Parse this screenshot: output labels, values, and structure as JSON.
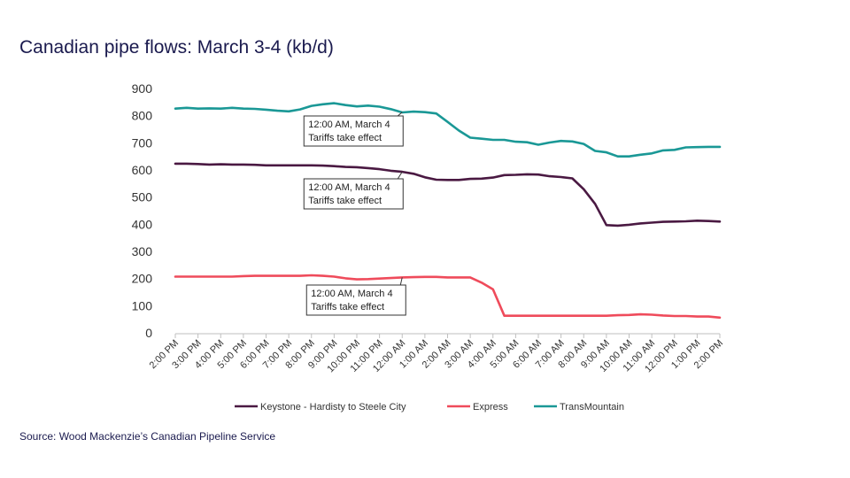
{
  "title": "Canadian pipe flows: March 3-4 (kb/d)",
  "source": "Source: Wood Mackenzie’s Canadian Pipeline Service",
  "chart_data": {
    "type": "line",
    "title": "Canadian pipe flows: March 3-4 (kb/d)",
    "xlabel": "",
    "ylabel": "",
    "ylim": [
      0,
      900
    ],
    "yticks": [
      0,
      100,
      200,
      300,
      400,
      500,
      600,
      700,
      800,
      900
    ],
    "grid": false,
    "legend_position": "bottom",
    "categories": [
      "2:00 PM",
      "3:00 PM",
      "4:00 PM",
      "5:00 PM",
      "6:00 PM",
      "7:00 PM",
      "8:00 PM",
      "9:00 PM",
      "10:00 PM",
      "11:00 PM",
      "12:00 AM",
      "1:00 AM",
      "2:00 AM",
      "3:00 AM",
      "4:00 AM",
      "5:00 AM",
      "6:00 AM",
      "7:00 AM",
      "8:00 AM",
      "9:00 AM",
      "10:00 AM",
      "11:00 AM",
      "12:00 PM",
      "1:00 PM",
      "2:00 PM"
    ],
    "x": [
      0,
      0.5,
      1,
      1.5,
      2,
      2.5,
      3,
      3.5,
      4,
      4.5,
      5,
      5.5,
      6,
      6.5,
      7,
      7.5,
      8,
      8.5,
      9,
      9.5,
      10,
      10.5,
      11,
      11.5,
      12,
      12.5,
      13,
      13.5,
      14,
      14.5,
      15,
      15.5,
      16,
      16.5,
      17,
      17.5,
      18,
      18.5,
      19,
      19.5,
      20,
      20.5,
      21,
      21.5,
      22,
      22.5,
      23,
      23.5,
      24
    ],
    "series": [
      {
        "name": "Keystone - Hardisty to Steele City",
        "color": "#4a1942",
        "values": [
          623,
          623,
          622,
          620,
          621,
          620,
          620,
          619,
          617,
          617,
          617,
          617,
          617,
          616,
          614,
          611,
          610,
          607,
          603,
          597,
          593,
          586,
          573,
          564,
          563,
          563,
          567,
          568,
          572,
          581,
          582,
          584,
          583,
          577,
          574,
          569,
          529,
          475,
          397,
          395,
          398,
          403,
          406,
          409,
          410,
          411,
          413,
          412,
          410
        ]
      },
      {
        "name": "Express",
        "color": "#ef4b5b",
        "values": [
          207,
          207,
          207,
          207,
          207,
          207,
          209,
          210,
          210,
          210,
          210,
          210,
          212,
          210,
          207,
          201,
          197,
          198,
          200,
          202,
          204,
          205,
          206,
          206,
          204,
          204,
          204,
          185,
          160,
          63,
          63,
          63,
          63,
          63,
          63,
          63,
          63,
          63,
          63,
          65,
          66,
          68,
          67,
          64,
          62,
          62,
          60,
          60,
          56
        ]
      },
      {
        "name": "TransMountain",
        "color": "#1a9896",
        "values": [
          826,
          829,
          826,
          827,
          826,
          829,
          826,
          825,
          822,
          818,
          816,
          823,
          836,
          842,
          846,
          839,
          834,
          837,
          833,
          824,
          812,
          815,
          813,
          808,
          777,
          745,
          719,
          715,
          711,
          711,
          704,
          702,
          693,
          701,
          707,
          705,
          696,
          670,
          665,
          650,
          650,
          656,
          661,
          672,
          674,
          683,
          684,
          685,
          685
        ]
      }
    ],
    "annotations": [
      {
        "line1": "12:00 AM, March 4",
        "line2": "Tariffs take effect",
        "x": 10,
        "y": 813
      },
      {
        "line1": "12:00 AM, March 4",
        "line2": "Tariffs take effect",
        "x": 10,
        "y": 593
      },
      {
        "line1": "12:00 AM, March 4",
        "line2": "Tariffs take effect",
        "x": 10,
        "y": 204
      }
    ]
  }
}
